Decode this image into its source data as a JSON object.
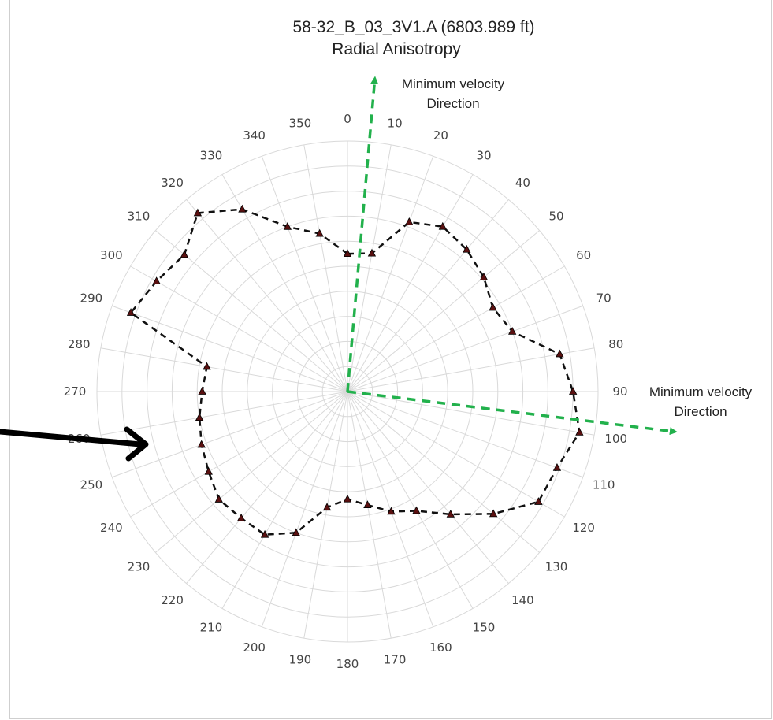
{
  "chart_data": {
    "type": "radar",
    "title": "58-32_B_03_3V1.A (6803.989 ft)",
    "subtitle": "Radial Anisotropy",
    "angle_labels": [
      "0",
      "10",
      "20",
      "30",
      "40",
      "50",
      "60",
      "70",
      "80",
      "90",
      "100",
      "110",
      "120",
      "130",
      "140",
      "150",
      "160",
      "170",
      "180",
      "190",
      "200",
      "210",
      "220",
      "230",
      "240",
      "250",
      "260",
      "270",
      "280",
      "290",
      "300",
      "310",
      "320",
      "330",
      "340",
      "350"
    ],
    "grid": true,
    "series": [
      {
        "values": [
          0.55,
          0.56,
          0.72,
          0.76,
          0.74,
          0.71,
          0.67,
          0.7,
          0.86,
          0.9,
          0.94,
          0.89,
          0.88,
          0.76,
          0.64,
          0.55,
          0.51,
          0.46,
          0.43,
          0.47,
          0.6,
          0.66,
          0.66,
          0.67,
          0.64,
          0.62,
          0.6,
          0.58,
          0.57,
          0.92,
          0.88,
          0.85,
          0.93,
          0.84,
          0.7,
          0.64
        ],
        "color": "#111111",
        "marker_color": "#5a1010",
        "line_style": "dashed"
      }
    ],
    "annotations": [
      {
        "text_lines": [
          "Minimum velocity",
          "Direction"
        ],
        "angle_deg": 5,
        "color": "#22b14c"
      },
      {
        "text_lines": [
          "Minimum velocity",
          "Direction"
        ],
        "angle_deg": 97,
        "color": "#22b14c"
      }
    ]
  },
  "colors": {
    "grid": "#d9d9d9",
    "arrow_green": "#22b14c",
    "pointer": "#000000"
  }
}
